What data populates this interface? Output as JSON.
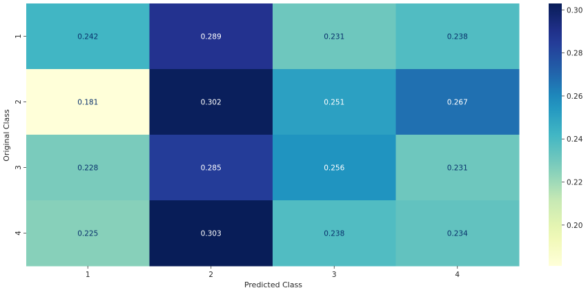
{
  "chart_data": {
    "type": "heatmap",
    "xlabel": "Predicted Class",
    "ylabel": "Original Class",
    "x_categories": [
      "1",
      "2",
      "3",
      "4"
    ],
    "y_categories": [
      "1",
      "2",
      "3",
      "4"
    ],
    "values": [
      [
        0.242,
        0.289,
        0.231,
        0.238
      ],
      [
        0.181,
        0.302,
        0.251,
        0.267
      ],
      [
        0.228,
        0.285,
        0.256,
        0.231
      ],
      [
        0.225,
        0.303,
        0.238,
        0.234
      ]
    ],
    "value_labels": [
      [
        "0.242",
        "0.289",
        "0.231",
        "0.238"
      ],
      [
        "0.181",
        "0.302",
        "0.251",
        "0.267"
      ],
      [
        "0.228",
        "0.285",
        "0.256",
        "0.231"
      ],
      [
        "0.225",
        "0.303",
        "0.238",
        "0.234"
      ]
    ],
    "colormap": "YlGnBu",
    "colorbar": {
      "vmin": 0.181,
      "vmax": 0.303,
      "ticks": [
        0.2,
        0.22,
        0.24,
        0.26,
        0.28,
        0.3
      ],
      "tick_labels": [
        "0.20",
        "0.22",
        "0.24",
        "0.26",
        "0.28",
        "0.30"
      ]
    },
    "annotation_colors": {
      "light": "#ffffff",
      "dark": "#08306b"
    },
    "grid": false
  }
}
